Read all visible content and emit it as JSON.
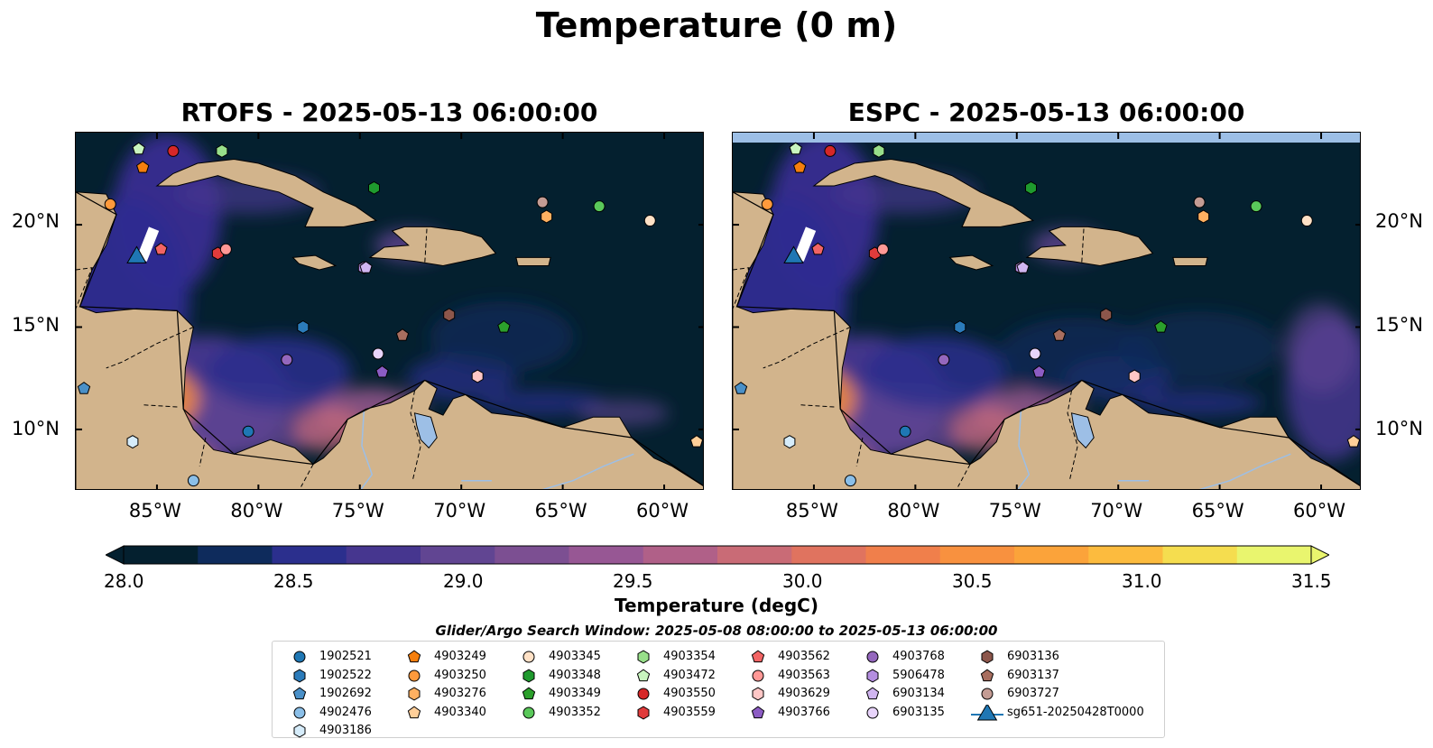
{
  "suptitle": "Temperature (0 m)",
  "panels": [
    {
      "title": "RTOFS - 2025-05-13 06:00:00"
    },
    {
      "title": "ESPC - 2025-05-13 06:00:00"
    }
  ],
  "lat_ticks": [
    "20°N",
    "15°N",
    "10°N"
  ],
  "lon_ticks": [
    "85°W",
    "80°W",
    "75°W",
    "70°W",
    "65°W",
    "60°W"
  ],
  "colorbar": {
    "label": "Temperature (degC)",
    "ticks": [
      "28.0",
      "28.5",
      "29.0",
      "29.5",
      "30.0",
      "30.5",
      "31.0",
      "31.5"
    ],
    "colors": [
      "#04202f",
      "#0e2b5c",
      "#2b2f8d",
      "#46368f",
      "#614592",
      "#7c4f92",
      "#975794",
      "#b06088",
      "#c96b76",
      "#e0735f",
      "#f07f4b",
      "#f8913f",
      "#fba33a",
      "#fcbb3e",
      "#f5dd4f",
      "#e9f56e"
    ],
    "extend_min_color": "#04202f",
    "extend_max_color": "#e9f56e"
  },
  "search_window": "Glider/Argo Search Window: 2025-05-08 08:00:00 to 2025-05-13 06:00:00",
  "legend": [
    {
      "label": "1902521",
      "marker": "circle",
      "color": "#1f77b4"
    },
    {
      "label": "1902522",
      "marker": "hexagon",
      "color": "#2b7bba"
    },
    {
      "label": "1902692",
      "marker": "pentagon",
      "color": "#4a90c8"
    },
    {
      "label": "4902476",
      "marker": "circle",
      "color": "#8bbfe8"
    },
    {
      "label": "4903186",
      "marker": "hexagon",
      "color": "#d6ecfa"
    },
    {
      "label": "4903249",
      "marker": "pentagon",
      "color": "#f57f0e"
    },
    {
      "label": "4903250",
      "marker": "circle",
      "color": "#ff9a3c"
    },
    {
      "label": "4903276",
      "marker": "hexagon",
      "color": "#ffb061"
    },
    {
      "label": "4903340",
      "marker": "pentagon",
      "color": "#ffcf99"
    },
    {
      "label": "4903345",
      "marker": "circle",
      "color": "#ffe1c6"
    },
    {
      "label": "4903348",
      "marker": "hexagon",
      "color": "#1f9a2e"
    },
    {
      "label": "4903349",
      "marker": "pentagon",
      "color": "#2ca02c"
    },
    {
      "label": "4903352",
      "marker": "circle",
      "color": "#5ac85a"
    },
    {
      "label": "4903354",
      "marker": "hexagon",
      "color": "#98df8a"
    },
    {
      "label": "4903472",
      "marker": "pentagon",
      "color": "#c9f5bf"
    },
    {
      "label": "4903550",
      "marker": "circle",
      "color": "#d62728"
    },
    {
      "label": "4903559",
      "marker": "hexagon",
      "color": "#e03b3b"
    },
    {
      "label": "4903562",
      "marker": "pentagon",
      "color": "#f26464"
    },
    {
      "label": "4903563",
      "marker": "circle",
      "color": "#ff9896"
    },
    {
      "label": "4903629",
      "marker": "hexagon",
      "color": "#ffc7c6"
    },
    {
      "label": "4903766",
      "marker": "pentagon",
      "color": "#8c5cc4"
    },
    {
      "label": "4903768",
      "marker": "circle",
      "color": "#9467bd"
    },
    {
      "label": "5906478",
      "marker": "hexagon",
      "color": "#b48ee0"
    },
    {
      "label": "6903134",
      "marker": "pentagon",
      "color": "#d0b5f0"
    },
    {
      "label": "6903135",
      "marker": "circle",
      "color": "#e8d4fb"
    },
    {
      "label": "6903136",
      "marker": "hexagon",
      "color": "#8c564b"
    },
    {
      "label": "6903137",
      "marker": "pentagon",
      "color": "#a86e5f"
    },
    {
      "label": "6903727",
      "marker": "circle",
      "color": "#c49c94"
    },
    {
      "label": "sg651-20250428T0000",
      "marker": "triangle",
      "color": "#1f77b4"
    }
  ],
  "chart_data": {
    "type": "heatmap",
    "title": "Temperature (0 m)",
    "panel_titles": [
      "RTOFS - 2025-05-13 06:00:00",
      "ESPC - 2025-05-13 06:00:00"
    ],
    "lon_range": [
      -89,
      -58
    ],
    "lat_range": [
      7,
      24.5
    ],
    "colorbar_range": [
      28.0,
      31.5
    ],
    "colorbar_label": "Temperature (degC)",
    "platforms": [
      {
        "id": "1902521",
        "lon": -80.5,
        "lat": 9.9
      },
      {
        "id": "1902522",
        "lon": -77.8,
        "lat": 15.0
      },
      {
        "id": "1902692",
        "lon": -88.6,
        "lat": 12.0
      },
      {
        "id": "4902476",
        "lon": -83.2,
        "lat": 7.5
      },
      {
        "id": "4903186",
        "lon": -86.2,
        "lat": 9.4
      },
      {
        "id": "4903249",
        "lon": -85.7,
        "lat": 22.8
      },
      {
        "id": "4903250",
        "lon": -87.3,
        "lat": 21.0
      },
      {
        "id": "4903276",
        "lon": -65.8,
        "lat": 20.4
      },
      {
        "id": "4903340",
        "lon": -58.4,
        "lat": 9.4
      },
      {
        "id": "4903345",
        "lon": -60.7,
        "lat": 20.2
      },
      {
        "id": "4903348",
        "lon": -74.3,
        "lat": 21.8
      },
      {
        "id": "4903349",
        "lon": -67.9,
        "lat": 15.0
      },
      {
        "id": "4903352",
        "lon": -63.2,
        "lat": 20.9
      },
      {
        "id": "4903354",
        "lon": -81.8,
        "lat": 23.6
      },
      {
        "id": "4903472",
        "lon": -85.9,
        "lat": 23.7
      },
      {
        "id": "4903550",
        "lon": -84.2,
        "lat": 23.6
      },
      {
        "id": "4903559",
        "lon": -82.0,
        "lat": 18.6
      },
      {
        "id": "4903562",
        "lon": -84.8,
        "lat": 18.8
      },
      {
        "id": "4903563",
        "lon": -81.6,
        "lat": 18.8
      },
      {
        "id": "4903629",
        "lon": -69.2,
        "lat": 12.6
      },
      {
        "id": "4903766",
        "lon": -73.9,
        "lat": 12.8
      },
      {
        "id": "4903768",
        "lon": -78.6,
        "lat": 13.4
      },
      {
        "id": "5906478",
        "lon": -74.8,
        "lat": 17.9
      },
      {
        "id": "6903134",
        "lon": -74.7,
        "lat": 17.9
      },
      {
        "id": "6903135",
        "lon": -74.1,
        "lat": 13.7
      },
      {
        "id": "6903136",
        "lon": -70.6,
        "lat": 15.6
      },
      {
        "id": "6903137",
        "lon": -72.9,
        "lat": 14.6
      },
      {
        "id": "6903727",
        "lon": -66.0,
        "lat": 21.1
      },
      {
        "id": "sg651-20250428T0000",
        "lon": -86.0,
        "lat": 18.4
      }
    ]
  }
}
